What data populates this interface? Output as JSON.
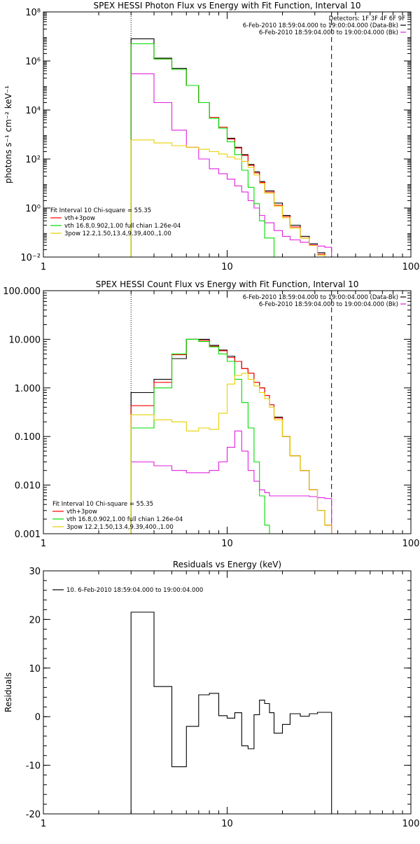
{
  "chart_data": [
    {
      "type": "line",
      "title": "SPEX HESSI Photon Flux vs Energy with Fit Function, Interval 10",
      "ylabel": "photons s⁻¹ cm⁻² keV⁻¹",
      "xlabel": "",
      "x_scale": "log",
      "y_scale": "log",
      "xlim": [
        1,
        100
      ],
      "ylim": [
        0.01,
        100000000
      ],
      "x_tick_labels": [
        "1",
        "10",
        "100"
      ],
      "y_tick_labels": [
        "10⁻²",
        "10⁰",
        "10²",
        "10⁴",
        "10⁶",
        "10⁸"
      ],
      "y_tick_values": [
        0.01,
        1,
        100,
        10000,
        1000000,
        100000000
      ],
      "header_lines": [
        {
          "text": "Detectors: 1F 3F 4F 6F 9F",
          "color": "#000000",
          "swatch": false
        },
        {
          "text": "6-Feb-2010 18:59:04.000 to 19:00:04.000 (Data-Bk)",
          "color": "#000000",
          "swatch": true
        },
        {
          "text": "6-Feb-2010 18:59:04.000 to 19:00:04.000 (Bk)",
          "color": "#e020e0",
          "swatch": true
        }
      ],
      "legend_lines": [
        {
          "text": "Fit Interval 10   Chi-square = 55.35",
          "color": "#000000",
          "swatch": false
        },
        {
          "text": "vth+3pow",
          "color": "#ff0000",
          "swatch": true
        },
        {
          "text": "vth 16.8,0.902,1.00  full chian 1.26e-04",
          "color": "#00dd00",
          "swatch": true
        },
        {
          "text": "3pow 12.2,1.50,13.4,9.39,400.,1.00",
          "color": "#e8d000",
          "swatch": true
        }
      ],
      "vlines": [
        {
          "x": 3,
          "style": "dotted"
        },
        {
          "x": 37,
          "style": "dashed"
        }
      ],
      "bin_edges": [
        3,
        3.5,
        4,
        4.5,
        5,
        5.5,
        6,
        6.5,
        7,
        7.5,
        8,
        8.5,
        9,
        9.5,
        10,
        11,
        12,
        13,
        14,
        15,
        16,
        18,
        20,
        22,
        25,
        28,
        31,
        34,
        37
      ],
      "series": [
        {
          "name": "Data-Bk",
          "color": "#000000",
          "values": [
            8000000,
            8000000,
            1300000,
            1300000,
            500000,
            500000,
            100000,
            100000,
            20000,
            20000,
            5000,
            5000,
            2000,
            2000,
            700,
            300,
            150,
            60,
            30,
            12,
            5,
            1.6,
            0.5,
            0.2,
            0.07,
            0.035,
            0.015,
            0.005
          ]
        },
        {
          "name": "Bk",
          "color": "#e020e0",
          "values": [
            300000,
            300000,
            20000,
            20000,
            1500,
            1500,
            300,
            300,
            100,
            100,
            40,
            40,
            25,
            25,
            15,
            8,
            4.5,
            2,
            1,
            0.5,
            0.25,
            0.12,
            0.07,
            0.05,
            0.04,
            0.032,
            0.028,
            0.025
          ]
        },
        {
          "name": "vth+3pow",
          "color": "#ff0000",
          "values": [
            5000000,
            5000000,
            1200000,
            1200000,
            450000,
            450000,
            100000,
            100000,
            20000,
            20000,
            5000,
            5000,
            2000,
            2000,
            650,
            280,
            140,
            55,
            27,
            11,
            4.5,
            1.3,
            0.45,
            0.17,
            0.06,
            0.03,
            0.013,
            0.005
          ]
        },
        {
          "name": "vth",
          "color": "#00dd00",
          "values": [
            5000000,
            5000000,
            1200000,
            1200000,
            450000,
            450000,
            100000,
            100000,
            20000,
            20000,
            4500,
            4500,
            1800,
            1800,
            500,
            150,
            35,
            7,
            1.5,
            0.3,
            0.06,
            0.01,
            0.01,
            0.01,
            0.01,
            0.01,
            0.01,
            0.01
          ]
        },
        {
          "name": "3pow",
          "color": "#e8d000",
          "values": [
            600,
            600,
            450,
            450,
            350,
            350,
            300,
            300,
            250,
            250,
            200,
            200,
            160,
            160,
            120,
            100,
            80,
            45,
            22,
            10,
            4,
            1.2,
            0.4,
            0.15,
            0.06,
            0.03,
            0.012,
            0.005
          ]
        }
      ]
    },
    {
      "type": "line",
      "title": "SPEX HESSI Count Flux vs Energy with Fit Function, Interval 10",
      "ylabel": "",
      "xlabel": "",
      "x_scale": "log",
      "y_scale": "log",
      "xlim": [
        1,
        100
      ],
      "ylim": [
        0.001,
        100
      ],
      "x_tick_labels": [
        "1",
        "10",
        "100"
      ],
      "y_tick_labels": [
        "0.001",
        "0.010",
        "0.100",
        "1.000",
        "10.000",
        "100.000"
      ],
      "y_tick_values": [
        0.001,
        0.01,
        0.1,
        1,
        10,
        100
      ],
      "header_lines": [
        {
          "text": "6-Feb-2010 18:59:04.000 to 19:00:04.000 (Data-Bk)",
          "color": "#000000",
          "swatch": true
        },
        {
          "text": "6-Feb-2010 18:59:04.000 to 19:00:04.000 (Bk)",
          "color": "#e020e0",
          "swatch": true
        }
      ],
      "legend_lines": [
        {
          "text": "Fit Interval 10   Chi-square = 55.35",
          "color": "#000000",
          "swatch": false
        },
        {
          "text": "vth+3pow",
          "color": "#ff0000",
          "swatch": true
        },
        {
          "text": "vth 16.8,0.902,1.00  full chian 1.26e-04",
          "color": "#00dd00",
          "swatch": true
        },
        {
          "text": "3pow 12.2,1.50,13.4,9.39,400.,1.00",
          "color": "#e8d000",
          "swatch": true
        }
      ],
      "vlines": [
        {
          "x": 3,
          "style": "dotted"
        },
        {
          "x": 37,
          "style": "dashed"
        }
      ],
      "bin_edges": [
        3,
        4,
        5,
        6,
        7,
        8,
        9,
        10,
        11,
        12,
        13,
        14,
        15,
        16,
        17,
        18,
        20,
        22,
        25,
        28,
        31,
        34,
        37
      ],
      "series": [
        {
          "name": "Data-Bk",
          "color": "#000000",
          "values": [
            0.8,
            1.5,
            4.0,
            10.0,
            10.0,
            7.5,
            6.0,
            4.5,
            3.5,
            2.5,
            2.0,
            1.3,
            1.0,
            0.7,
            0.45,
            0.25,
            0.1,
            0.04,
            0.02,
            0.008,
            0.003,
            0.0015
          ]
        },
        {
          "name": "Bk",
          "color": "#e020e0",
          "values": [
            0.03,
            0.025,
            0.02,
            0.018,
            0.018,
            0.02,
            0.03,
            0.06,
            0.13,
            0.05,
            0.02,
            0.012,
            0.008,
            0.007,
            0.006,
            0.006,
            0.006,
            0.006,
            0.006,
            0.0058,
            0.0055,
            0.0053
          ]
        },
        {
          "name": "vth+3pow",
          "color": "#ff0000",
          "values": [
            0.43,
            1.3,
            4.8,
            10.0,
            9.5,
            7.2,
            5.8,
            4.2,
            3.5,
            2.5,
            2.0,
            1.3,
            1.0,
            0.7,
            0.45,
            0.24,
            0.1,
            0.04,
            0.02,
            0.008,
            0.003,
            0.0015
          ]
        },
        {
          "name": "vth",
          "color": "#00dd00",
          "values": [
            0.15,
            1.0,
            5.0,
            10.0,
            9.0,
            7.0,
            5.0,
            3.5,
            1.5,
            0.5,
            0.15,
            0.03,
            0.006,
            0.0015,
            0.001,
            0.001,
            0.001,
            0.001,
            0.001,
            0.001,
            0.001,
            0.001
          ]
        },
        {
          "name": "3pow",
          "color": "#e8d000",
          "values": [
            0.28,
            0.22,
            0.2,
            0.13,
            0.15,
            0.14,
            0.3,
            1.2,
            1.8,
            2.0,
            1.5,
            1.1,
            0.8,
            0.6,
            0.4,
            0.22,
            0.1,
            0.04,
            0.02,
            0.008,
            0.003,
            0.0015
          ]
        }
      ]
    },
    {
      "type": "line",
      "title": "Residuals vs Energy (keV)",
      "ylabel": "Residuals",
      "xlabel": "",
      "x_scale": "log",
      "y_scale": "linear",
      "xlim": [
        1,
        100
      ],
      "ylim": [
        -20,
        30
      ],
      "x_tick_labels": [
        "1",
        "10",
        "100"
      ],
      "y_tick_labels": [
        "-20",
        "-10",
        "0",
        "10",
        "20",
        "30"
      ],
      "y_tick_values": [
        -20,
        -10,
        0,
        10,
        20,
        30
      ],
      "legend_lines": [
        {
          "text": "10.  6-Feb-2010 18:59:04.000 to 19:00:04.000",
          "color": "#000000",
          "swatch": true
        }
      ],
      "bin_edges": [
        3,
        4,
        5,
        6,
        7,
        8,
        9,
        10,
        11,
        12,
        13,
        14,
        15,
        16,
        17,
        18,
        20,
        22,
        25,
        28,
        31,
        34,
        37
      ],
      "series": [
        {
          "name": "",
          "color": "#000000",
          "values": [
            21.5,
            6.2,
            -10.3,
            -2.0,
            4.5,
            4.8,
            0.2,
            -0.3,
            0.8,
            -6.0,
            -6.6,
            0.4,
            3.4,
            2.7,
            0.8,
            -3.4,
            -1.6,
            0.6,
            0.1,
            0.6,
            0.9,
            0.9
          ]
        }
      ]
    }
  ]
}
